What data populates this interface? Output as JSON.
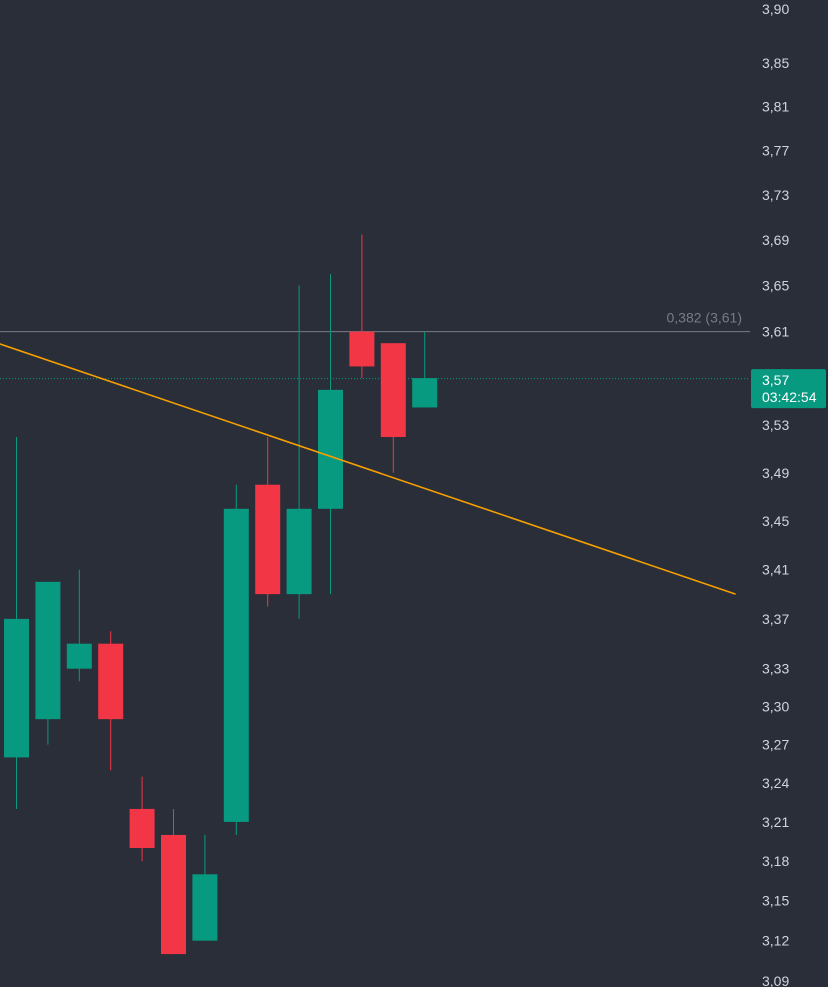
{
  "chart_data": {
    "type": "candlestick",
    "y_scale": "log",
    "ylim": [
      3.09,
      3.9
    ],
    "y_ticks": [
      "3,90",
      "3,85",
      "3,81",
      "3,77",
      "3,73",
      "3,69",
      "3,65",
      "3,61",
      "3,57",
      "3,53",
      "3,49",
      "3,45",
      "3,41",
      "3,37",
      "3,33",
      "3,30",
      "3,27",
      "3,24",
      "3,21",
      "3,18",
      "3,15",
      "3,12",
      "3,09"
    ],
    "y_tick_values": [
      3.9,
      3.85,
      3.81,
      3.77,
      3.73,
      3.69,
      3.65,
      3.61,
      3.57,
      3.53,
      3.49,
      3.45,
      3.41,
      3.37,
      3.33,
      3.3,
      3.27,
      3.24,
      3.21,
      3.18,
      3.15,
      3.12,
      3.09
    ],
    "candles": [
      {
        "open": 3.26,
        "high": 3.52,
        "low": 3.22,
        "close": 3.37
      },
      {
        "open": 3.29,
        "high": 3.4,
        "low": 3.27,
        "close": 3.4
      },
      {
        "open": 3.33,
        "high": 3.41,
        "low": 3.32,
        "close": 3.35
      },
      {
        "open": 3.35,
        "high": 3.36,
        "low": 3.25,
        "close": 3.29
      },
      {
        "open": 3.22,
        "high": 3.245,
        "low": 3.18,
        "close": 3.19
      },
      {
        "open": 3.2,
        "high": 3.22,
        "low": 3.11,
        "close": 3.11
      },
      {
        "open": 3.12,
        "high": 3.2,
        "low": 3.12,
        "close": 3.17
      },
      {
        "open": 3.21,
        "high": 3.48,
        "low": 3.2,
        "close": 3.46
      },
      {
        "open": 3.48,
        "high": 3.52,
        "low": 3.38,
        "close": 3.39
      },
      {
        "open": 3.39,
        "high": 3.65,
        "low": 3.37,
        "close": 3.46
      },
      {
        "open": 3.46,
        "high": 3.66,
        "low": 3.39,
        "close": 3.56
      },
      {
        "open": 3.61,
        "high": 3.695,
        "low": 3.57,
        "close": 3.58
      },
      {
        "open": 3.6,
        "high": 3.6,
        "low": 3.49,
        "close": 3.52
      },
      {
        "open": 3.545,
        "high": 3.61,
        "low": 3.545,
        "close": 3.57
      }
    ],
    "fib_level": {
      "label": "0,382 (3,61)",
      "value": 3.61
    },
    "current_price": {
      "label": "3,57",
      "value": 3.57,
      "countdown": "03:42:54"
    },
    "trendline": {
      "start": {
        "candle": -0.6,
        "value": 3.6
      },
      "end": {
        "candle": 22.9,
        "value": 3.39
      }
    },
    "colors": {
      "background": "#2a2e39",
      "up": "#089981",
      "down": "#f23645",
      "trendline": "#f59f00",
      "fib_line": "#787b86",
      "price_line": "#089981",
      "tick_text": "#d1d4dc"
    }
  }
}
